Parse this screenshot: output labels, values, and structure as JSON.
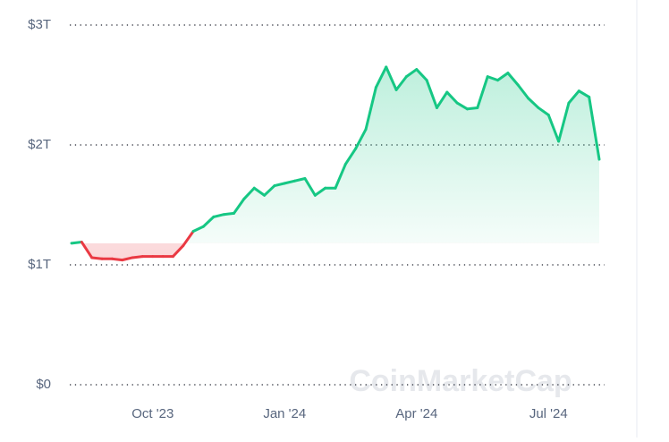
{
  "chart_data": {
    "type": "line",
    "watermark": "CoinMarketCap",
    "categories": [
      null,
      null,
      null,
      null,
      null,
      null,
      null,
      null,
      "Oct '23",
      null,
      null,
      null,
      null,
      null,
      null,
      null,
      null,
      null,
      null,
      null,
      null,
      "Jan '24",
      null,
      null,
      null,
      null,
      null,
      null,
      null,
      null,
      null,
      null,
      null,
      null,
      "Apr '24",
      null,
      null,
      null,
      null,
      null,
      null,
      null,
      null,
      null,
      null,
      null,
      null,
      "Jul '24",
      null,
      null,
      null,
      null,
      null
    ],
    "values": [
      1.18,
      1.19,
      1.06,
      1.05,
      1.05,
      1.04,
      1.06,
      1.07,
      1.07,
      1.07,
      1.07,
      1.16,
      1.28,
      1.32,
      1.4,
      1.42,
      1.43,
      1.55,
      1.64,
      1.58,
      1.66,
      1.68,
      1.7,
      1.72,
      1.58,
      1.64,
      1.64,
      1.84,
      1.97,
      2.13,
      2.48,
      2.65,
      2.46,
      2.57,
      2.63,
      2.54,
      2.31,
      2.44,
      2.35,
      2.3,
      2.31,
      2.57,
      2.54,
      2.6,
      2.5,
      2.39,
      2.31,
      2.25,
      2.03,
      2.35,
      2.45,
      2.4,
      1.88
    ],
    "color": "#16c784",
    "down_color": "#ea3943",
    "ylim": [
      0,
      3.1
    ],
    "yticks": [
      {
        "value": 0,
        "label": "$0"
      },
      {
        "value": 1,
        "label": "$1T"
      },
      {
        "value": 2,
        "label": "$2T"
      },
      {
        "value": 3,
        "label": "$3T"
      }
    ],
    "grid": true
  }
}
